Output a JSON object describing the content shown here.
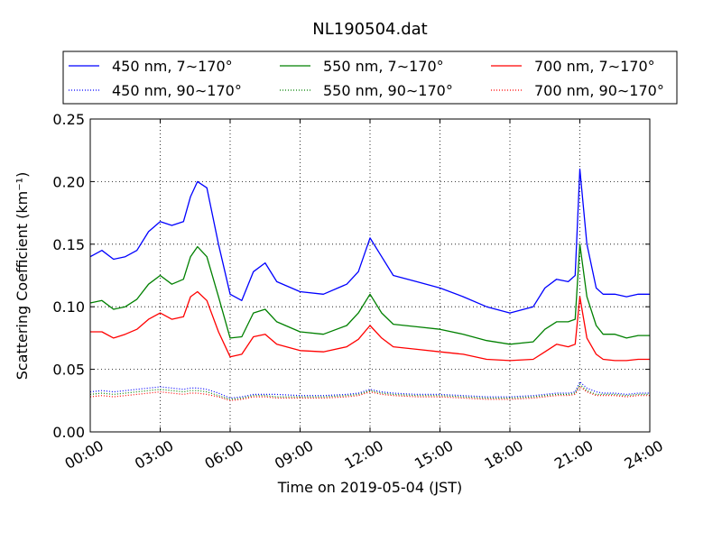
{
  "chart_data": {
    "type": "line",
    "title": "NL190504.dat",
    "xlabel": "Time on 2019-05-04 (JST)",
    "ylabel": "Scattering Coefficient (km⁻¹)",
    "xlim": [
      0,
      24
    ],
    "ylim": [
      0,
      0.25
    ],
    "x_ticks": [
      0,
      3,
      6,
      9,
      12,
      15,
      18,
      21,
      24
    ],
    "x_tick_labels": [
      "00:00",
      "03:00",
      "06:00",
      "09:00",
      "12:00",
      "15:00",
      "18:00",
      "21:00",
      "24:00"
    ],
    "y_ticks": [
      0.0,
      0.05,
      0.1,
      0.15,
      0.2,
      0.25
    ],
    "y_tick_labels": [
      "0.00",
      "0.05",
      "0.10",
      "0.15",
      "0.20",
      "0.25"
    ],
    "grid": true,
    "legend_position": "top",
    "x_hours": [
      0,
      0.5,
      1,
      1.5,
      2,
      2.5,
      3,
      3.5,
      4,
      4.3,
      4.6,
      5,
      5.5,
      6,
      6.5,
      7,
      7.5,
      8,
      9,
      10,
      11,
      11.5,
      12,
      12.5,
      13,
      14,
      15,
      16,
      17,
      18,
      19,
      19.5,
      20,
      20.5,
      20.8,
      21,
      21.3,
      21.7,
      22,
      22.5,
      23,
      23.5,
      24
    ],
    "series": [
      {
        "name": "450 nm, 7∼170°",
        "color": "#0000ff",
        "style": "solid",
        "values": [
          0.14,
          0.145,
          0.138,
          0.14,
          0.145,
          0.16,
          0.168,
          0.165,
          0.168,
          0.188,
          0.2,
          0.195,
          0.15,
          0.11,
          0.105,
          0.128,
          0.135,
          0.12,
          0.112,
          0.11,
          0.118,
          0.128,
          0.155,
          0.14,
          0.125,
          0.12,
          0.115,
          0.108,
          0.1,
          0.095,
          0.1,
          0.115,
          0.122,
          0.12,
          0.125,
          0.21,
          0.15,
          0.115,
          0.11,
          0.11,
          0.108,
          0.11,
          0.11
        ]
      },
      {
        "name": "550 nm, 7∼170°",
        "color": "#008000",
        "style": "solid",
        "values": [
          0.103,
          0.105,
          0.098,
          0.1,
          0.106,
          0.118,
          0.125,
          0.118,
          0.122,
          0.14,
          0.148,
          0.14,
          0.108,
          0.075,
          0.076,
          0.095,
          0.098,
          0.088,
          0.08,
          0.078,
          0.085,
          0.095,
          0.11,
          0.095,
          0.086,
          0.084,
          0.082,
          0.078,
          0.073,
          0.07,
          0.072,
          0.082,
          0.088,
          0.088,
          0.09,
          0.15,
          0.108,
          0.085,
          0.078,
          0.078,
          0.075,
          0.077,
          0.077
        ]
      },
      {
        "name": "700 nm, 7∼170°",
        "color": "#ff0000",
        "style": "solid",
        "values": [
          0.08,
          0.08,
          0.075,
          0.078,
          0.082,
          0.09,
          0.095,
          0.09,
          0.092,
          0.108,
          0.112,
          0.105,
          0.08,
          0.06,
          0.062,
          0.076,
          0.078,
          0.07,
          0.065,
          0.064,
          0.068,
          0.074,
          0.085,
          0.075,
          0.068,
          0.066,
          0.064,
          0.062,
          0.058,
          0.057,
          0.058,
          0.064,
          0.07,
          0.068,
          0.07,
          0.108,
          0.075,
          0.062,
          0.058,
          0.057,
          0.057,
          0.058,
          0.058
        ]
      },
      {
        "name": "450 nm, 90∼170°",
        "color": "#0000ff",
        "style": "dotted",
        "values": [
          0.032,
          0.033,
          0.032,
          0.033,
          0.034,
          0.035,
          0.036,
          0.035,
          0.034,
          0.035,
          0.035,
          0.034,
          0.031,
          0.027,
          0.028,
          0.03,
          0.03,
          0.03,
          0.029,
          0.029,
          0.03,
          0.031,
          0.034,
          0.032,
          0.031,
          0.03,
          0.03,
          0.029,
          0.028,
          0.028,
          0.029,
          0.03,
          0.031,
          0.031,
          0.032,
          0.04,
          0.035,
          0.032,
          0.031,
          0.031,
          0.03,
          0.031,
          0.031
        ]
      },
      {
        "name": "550 nm, 90∼170°",
        "color": "#008000",
        "style": "dotted",
        "values": [
          0.03,
          0.031,
          0.03,
          0.031,
          0.032,
          0.033,
          0.034,
          0.033,
          0.032,
          0.033,
          0.033,
          0.032,
          0.029,
          0.026,
          0.027,
          0.029,
          0.029,
          0.028,
          0.028,
          0.028,
          0.029,
          0.03,
          0.033,
          0.031,
          0.03,
          0.029,
          0.029,
          0.028,
          0.027,
          0.027,
          0.028,
          0.029,
          0.03,
          0.03,
          0.031,
          0.038,
          0.033,
          0.03,
          0.03,
          0.03,
          0.029,
          0.03,
          0.03
        ]
      },
      {
        "name": "700 nm, 90∼170°",
        "color": "#ff0000",
        "style": "dotted",
        "values": [
          0.028,
          0.029,
          0.028,
          0.029,
          0.03,
          0.031,
          0.032,
          0.031,
          0.03,
          0.031,
          0.031,
          0.03,
          0.028,
          0.025,
          0.026,
          0.028,
          0.028,
          0.027,
          0.027,
          0.027,
          0.028,
          0.029,
          0.032,
          0.03,
          0.029,
          0.028,
          0.028,
          0.027,
          0.026,
          0.026,
          0.027,
          0.028,
          0.029,
          0.029,
          0.03,
          0.036,
          0.032,
          0.029,
          0.029,
          0.029,
          0.028,
          0.029,
          0.029
        ]
      }
    ]
  }
}
